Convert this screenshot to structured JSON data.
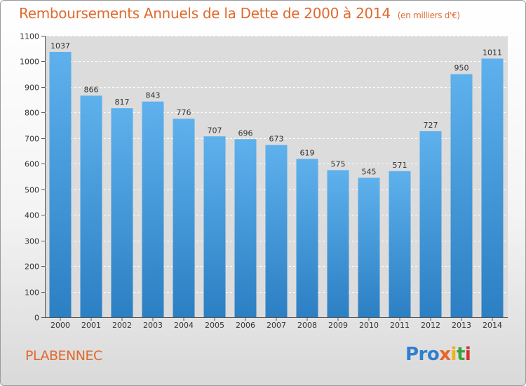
{
  "header": {
    "title": "Remboursements Annuels de la Dette de 2000 à 2014",
    "subtitle": "(en milliers d'€)"
  },
  "footer": {
    "place": "PLABENNEC",
    "logo_parts": [
      "Pro",
      "x",
      "i",
      "t",
      "i"
    ]
  },
  "colors": {
    "title": "#e06a2e",
    "bar_top": "#5eb1ec",
    "bar_bottom": "#2b7fc3",
    "plot_background": "#dcdcdc"
  },
  "chart_data": {
    "type": "bar",
    "title": "Remboursements Annuels de la Dette de 2000 à 2014",
    "xlabel": "",
    "ylabel": "",
    "ylim": [
      0,
      1100
    ],
    "yticks": [
      0,
      100,
      200,
      300,
      400,
      500,
      600,
      700,
      800,
      900,
      1000,
      1100
    ],
    "grid": true,
    "categories": [
      "2000",
      "2001",
      "2002",
      "2003",
      "2004",
      "2005",
      "2006",
      "2007",
      "2008",
      "2009",
      "2010",
      "2011",
      "2012",
      "2013",
      "2014"
    ],
    "values": [
      1037,
      866,
      817,
      843,
      776,
      707,
      696,
      673,
      619,
      575,
      545,
      571,
      727,
      950,
      1011
    ]
  }
}
